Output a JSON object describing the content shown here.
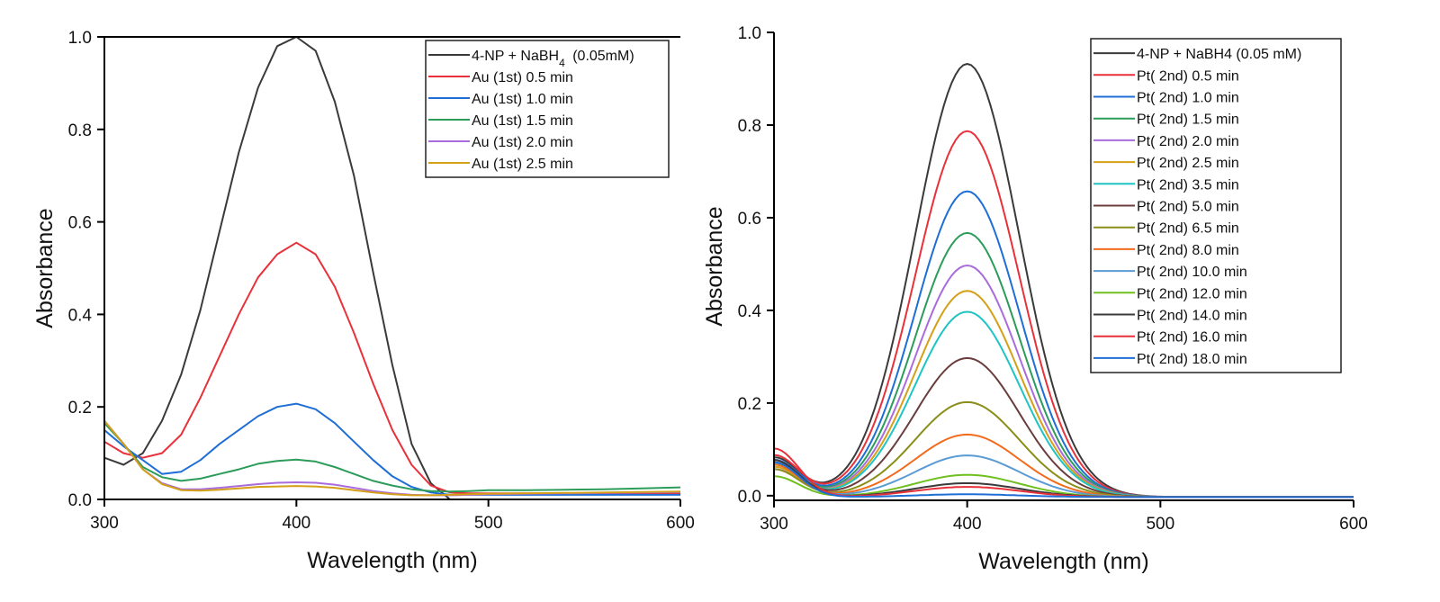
{
  "chart_data": [
    {
      "type": "line",
      "title": "",
      "xlabel": "Wavelength (nm)",
      "ylabel": "Absorbance",
      "xlim": [
        300,
        600
      ],
      "ylim": [
        0.0,
        1.0
      ],
      "xticks": [
        300,
        400,
        500,
        600
      ],
      "xtick_labels": [
        "300",
        "400",
        "500",
        "600"
      ],
      "yticks": [
        0.0,
        0.2,
        0.4,
        0.6,
        0.8,
        1.0
      ],
      "ytick_labels": [
        "0.0",
        "0.2",
        "0.4",
        "0.6",
        "0.8",
        "1.0"
      ],
      "grid": false,
      "legend_position": "top-right",
      "x": [
        300,
        310,
        320,
        330,
        340,
        350,
        360,
        370,
        380,
        390,
        400,
        410,
        420,
        430,
        440,
        450,
        460,
        470,
        480,
        490,
        500,
        520,
        540,
        560,
        580,
        600
      ],
      "series": [
        {
          "name": "4-NP + NaBH",
          "name_sub": "4",
          "name_suffix": " (0.05mM)",
          "color": "#3a3a3a",
          "values": [
            0.09,
            0.075,
            0.1,
            0.17,
            0.27,
            0.41,
            0.58,
            0.75,
            0.89,
            0.98,
            1.0,
            0.97,
            0.86,
            0.7,
            0.49,
            0.29,
            0.12,
            0.035,
            0.0,
            0.0,
            0.0,
            0.0,
            0.0,
            0.0,
            0.0,
            0.0
          ]
        },
        {
          "name": "Au (1st) 0.5 min",
          "color": "#e8313a",
          "values": [
            0.125,
            0.1,
            0.09,
            0.1,
            0.14,
            0.22,
            0.31,
            0.4,
            0.48,
            0.53,
            0.555,
            0.53,
            0.46,
            0.36,
            0.25,
            0.15,
            0.075,
            0.03,
            0.015,
            0.013,
            0.013,
            0.013,
            0.013,
            0.013,
            0.013,
            0.013
          ]
        },
        {
          "name": "Au (1st) 1.0 min",
          "color": "#1e6ed6",
          "values": [
            0.15,
            0.115,
            0.085,
            0.055,
            0.06,
            0.085,
            0.12,
            0.15,
            0.18,
            0.2,
            0.207,
            0.195,
            0.165,
            0.125,
            0.085,
            0.05,
            0.027,
            0.015,
            0.01,
            0.01,
            0.01,
            0.01,
            0.01,
            0.01,
            0.01,
            0.01
          ]
        },
        {
          "name": "Au (1st) 1.5 min",
          "color": "#2c9c5a",
          "values": [
            0.165,
            0.12,
            0.07,
            0.048,
            0.04,
            0.045,
            0.055,
            0.065,
            0.077,
            0.083,
            0.086,
            0.082,
            0.07,
            0.055,
            0.04,
            0.03,
            0.022,
            0.018,
            0.017,
            0.018,
            0.02,
            0.02,
            0.021,
            0.022,
            0.024,
            0.026
          ]
        },
        {
          "name": "Au (1st) 2.0 min",
          "color": "#a96cdc",
          "values": [
            0.17,
            0.12,
            0.065,
            0.035,
            0.022,
            0.022,
            0.025,
            0.029,
            0.033,
            0.036,
            0.037,
            0.036,
            0.032,
            0.025,
            0.018,
            0.013,
            0.01,
            0.009,
            0.009,
            0.01,
            0.011,
            0.012,
            0.013,
            0.014,
            0.015,
            0.016
          ]
        },
        {
          "name": "Au (1st) 2.5 min",
          "color": "#d4a017",
          "values": [
            0.17,
            0.12,
            0.065,
            0.033,
            0.02,
            0.019,
            0.021,
            0.024,
            0.027,
            0.028,
            0.029,
            0.028,
            0.025,
            0.02,
            0.015,
            0.011,
            0.009,
            0.009,
            0.01,
            0.011,
            0.012,
            0.013,
            0.014,
            0.015,
            0.016,
            0.017
          ]
        }
      ]
    },
    {
      "type": "line",
      "title": "",
      "xlabel": "Wavelength (nm)",
      "ylabel": "Absorbance",
      "xlim": [
        300,
        600
      ],
      "ylim": [
        -0.01,
        1.0
      ],
      "xticks": [
        300,
        400,
        500,
        600
      ],
      "xtick_labels": [
        "300",
        "400",
        "500",
        "600"
      ],
      "yticks": [
        0.0,
        0.2,
        0.4,
        0.6,
        0.8,
        1.0
      ],
      "ytick_labels": [
        "0.0",
        "0.2",
        "0.4",
        "0.6",
        "0.8",
        "1.0"
      ],
      "grid": false,
      "legend_position": "top-right",
      "peak_wavelength": 400,
      "series": [
        {
          "name": "4-NP + NaBH4 (0.05 mM)",
          "color": "#3a3a3a",
          "peak": 0.935,
          "start": 0.085
        },
        {
          "name": "Pt( 2nd) 0.5 min",
          "color": "#e8313a",
          "peak": 0.79,
          "start": 0.09
        },
        {
          "name": "Pt( 2nd) 1.0 min",
          "color": "#1e6ed6",
          "peak": 0.66,
          "start": 0.08
        },
        {
          "name": "Pt( 2nd) 1.5 min",
          "color": "#2c9c5a",
          "peak": 0.57,
          "start": 0.07
        },
        {
          "name": "Pt( 2nd) 2.0 min",
          "color": "#a96cdc",
          "peak": 0.5,
          "start": 0.06
        },
        {
          "name": "Pt( 2nd) 2.5 min",
          "color": "#d4a017",
          "peak": 0.445,
          "start": 0.065
        },
        {
          "name": "Pt( 2nd) 3.5 min",
          "color": "#1fc4c4",
          "peak": 0.4,
          "start": 0.07
        },
        {
          "name": "Pt( 2nd) 5.0 min",
          "color": "#6b3d3d",
          "peak": 0.3,
          "start": 0.075
        },
        {
          "name": "Pt( 2nd) 6.5 min",
          "color": "#8a8f1a",
          "peak": 0.205,
          "start": 0.06
        },
        {
          "name": "Pt( 2nd) 8.0 min",
          "color": "#f26b1d",
          "peak": 0.135,
          "start": 0.07
        },
        {
          "name": "Pt( 2nd) 10.0 min",
          "color": "#5b9bd5",
          "peak": 0.09,
          "start": 0.075
        },
        {
          "name": "Pt( 2nd) 12.0 min",
          "color": "#6fbf1f",
          "peak": 0.048,
          "start": 0.045
        },
        {
          "name": "Pt( 2nd) 14.0 min",
          "color": "#3a3a3a",
          "peak": 0.03,
          "start": 0.08
        },
        {
          "name": "Pt( 2nd) 16.0 min",
          "color": "#e8313a",
          "peak": 0.022,
          "start": 0.105
        },
        {
          "name": "Pt( 2nd) 18.0 min",
          "color": "#1e6ed6",
          "peak": 0.006,
          "start": 0.075
        }
      ]
    }
  ]
}
